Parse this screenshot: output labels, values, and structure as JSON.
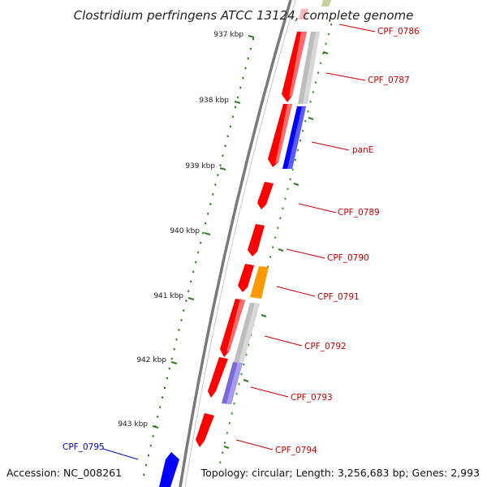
{
  "map": {
    "title": "Clostridium perfringens ATCC 13124, complete genome",
    "accession": "Accession: NC_008261",
    "topology": "Topology: circular; Length: 3,256,683 bp; Genes: 2,993",
    "colors": {
      "backbone": "#7a7a7a",
      "tick_major": "#2e7d1e",
      "tick_minor": "#3a9a26",
      "label_red": "#cc0000",
      "label_blue": "#0000cc",
      "gene_red": "#ff0000",
      "gene_gray": "#bdbdbd",
      "gene_blue": "#0000ff",
      "gene_orange": "#ff9900",
      "gene_purple": "#7a6ad6",
      "gene_olive": "#c8cf9a",
      "gene_pink": "#f4b8b8"
    },
    "kbp_labels": [
      "937 kbp",
      "938 kbp",
      "939 kbp",
      "940 kbp",
      "941 kbp",
      "942 kbp",
      "943 kbp"
    ],
    "gene_labels": [
      {
        "name": "CPF_0786",
        "color": "red"
      },
      {
        "name": "CPF_0787",
        "color": "red"
      },
      {
        "name": "panE",
        "color": "red"
      },
      {
        "name": "CPF_0789",
        "color": "red"
      },
      {
        "name": "CPF_0790",
        "color": "red"
      },
      {
        "name": "CPF_0791",
        "color": "red"
      },
      {
        "name": "CPF_0792",
        "color": "red"
      },
      {
        "name": "CPF_0793",
        "color": "red"
      },
      {
        "name": "CPF_0794",
        "color": "red"
      },
      {
        "name": "CPF_0795",
        "color": "blue"
      }
    ]
  }
}
